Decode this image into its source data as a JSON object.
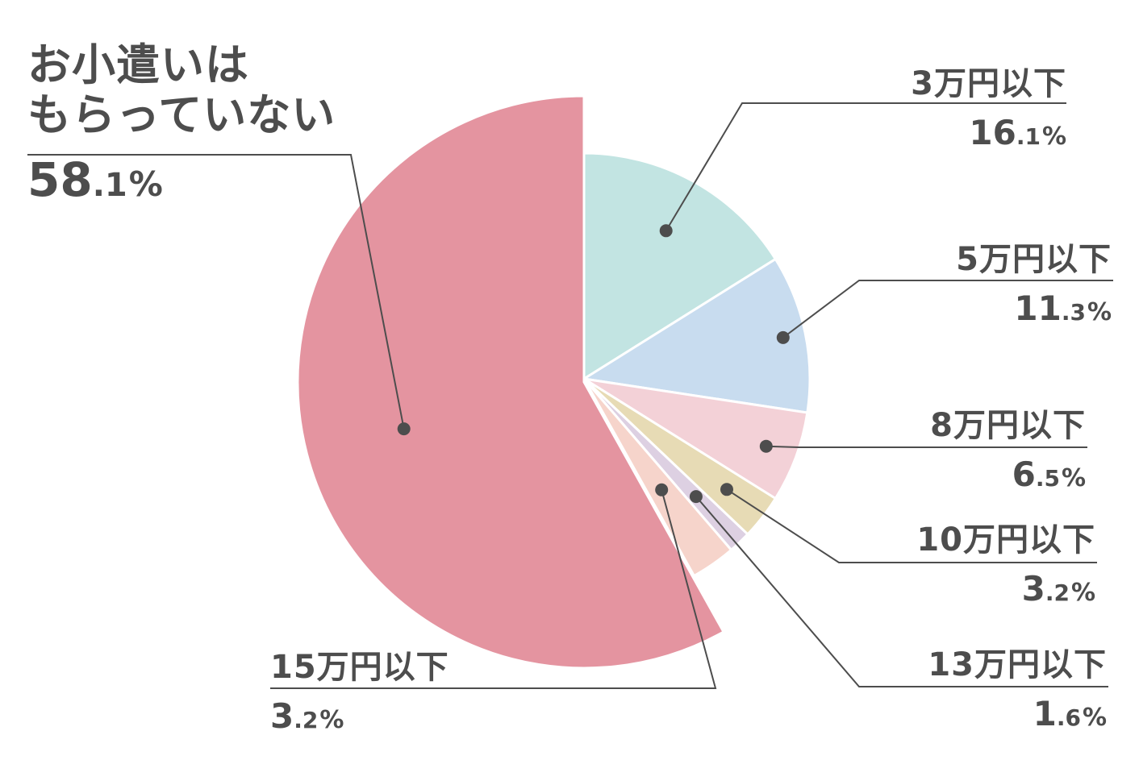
{
  "chart_data": {
    "type": "pie",
    "start_angle_deg": 0,
    "direction": "clockwise",
    "slices": [
      {
        "label": "3万円以下",
        "value": 16.1,
        "pct_int": "16",
        "pct_dec": ".1",
        "unit": "%",
        "color": "#c2e4e2",
        "offset": false
      },
      {
        "label": "5万円以下",
        "value": 11.3,
        "pct_int": "11",
        "pct_dec": ".3",
        "unit": "%",
        "color": "#c8dcef",
        "offset": false
      },
      {
        "label": "8万円以下",
        "value": 6.5,
        "pct_int": "6",
        "pct_dec": ".5",
        "unit": "%",
        "color": "#f3d1d7",
        "offset": false
      },
      {
        "label": "10万円以下",
        "value": 3.2,
        "pct_int": "3",
        "pct_dec": ".2",
        "unit": "%",
        "color": "#e7dbb5",
        "offset": false
      },
      {
        "label": "13万円以下",
        "value": 1.6,
        "pct_int": "1",
        "pct_dec": ".6",
        "unit": "%",
        "color": "#ddd0e2",
        "offset": false
      },
      {
        "label": "15万円以下",
        "value": 3.2,
        "pct_int": "3",
        "pct_dec": ".2",
        "unit": "%",
        "color": "#f6d4cb",
        "offset": false
      },
      {
        "label": "お小遣いはもらっていない",
        "label_lines": [
          "お小遣いは",
          "もらっていない"
        ],
        "value": 58.1,
        "pct_int": "58",
        "pct_dec": ".1",
        "unit": "%",
        "color": "#e494a0",
        "offset": true
      }
    ]
  }
}
